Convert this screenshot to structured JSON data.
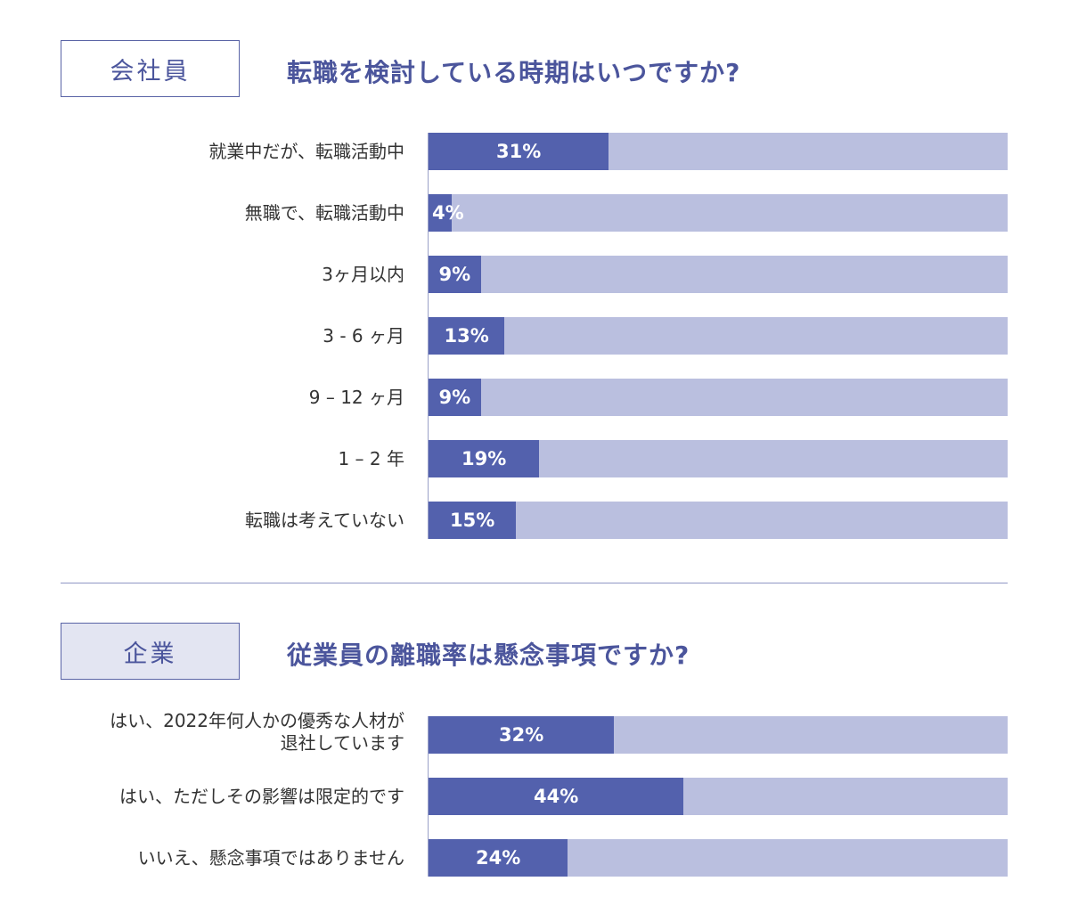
{
  "section1": {
    "tag": "会社員",
    "question": "転職を検討している時期はいつですか?"
  },
  "section2": {
    "tag": "企業",
    "question": "従業員の離職率は懸念事項ですか?"
  },
  "colors": {
    "bar": "#5361ad",
    "track": "#babfdf",
    "accent": "#4b559c"
  },
  "chart_data": [
    {
      "type": "bar",
      "orientation": "horizontal",
      "stacked_to_100": true,
      "categories": [
        "就業中だが、転職活動中",
        "無職で、転職活動中",
        "3ヶ月以内",
        "3 - 6 ヶ月",
        "9 – 12 ヶ月",
        "1 – 2 年",
        "転職は考えていない"
      ],
      "values": [
        31,
        4,
        9,
        13,
        9,
        19,
        15
      ],
      "value_labels": [
        "31%",
        "4%",
        "9%",
        "13%",
        "9%",
        "19%",
        "15%"
      ],
      "unit": "%",
      "xlim": [
        0,
        100
      ]
    },
    {
      "type": "bar",
      "orientation": "horizontal",
      "stacked_to_100": true,
      "categories": [
        "はい、2022年何人かの優秀な人材が退社しています",
        "はい、ただしその影響は限定的です",
        "いいえ、懸念事項ではありません"
      ],
      "values": [
        32,
        44,
        24
      ],
      "value_labels": [
        "32%",
        "44%",
        "24%"
      ],
      "unit": "%",
      "xlim": [
        0,
        100
      ]
    }
  ]
}
